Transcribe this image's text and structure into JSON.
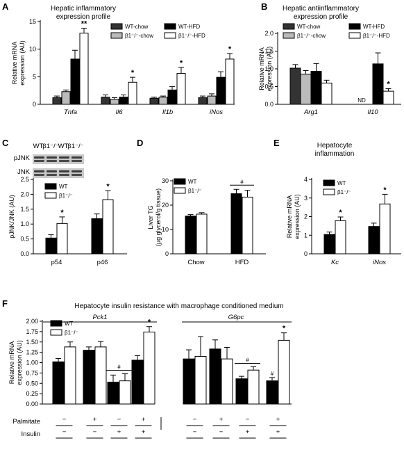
{
  "colors": {
    "wt_chow": "#333333",
    "b1_chow": "#bbbbbb",
    "wt_hfd": "#000000",
    "b1_hfd": "#ffffff",
    "wt": "#000000",
    "b1": "#ffffff",
    "stroke": "#000000"
  },
  "chart_data": [
    {
      "id": "A",
      "panel_label": "A",
      "type": "bar",
      "title": [
        "Hepatic inflammatory",
        "expression profile"
      ],
      "ylabel": [
        "Relative mRNA",
        "expression (AU)"
      ],
      "ylim": [
        0,
        15
      ],
      "yticks": [
        0,
        5,
        10,
        15
      ],
      "categories": [
        "Tnfa",
        "Il6",
        "Il1b",
        "iNos"
      ],
      "category_italic": true,
      "series": [
        {
          "name": "WT-chow",
          "color": "#333333",
          "values": [
            1.2,
            1.3,
            1.1,
            1.2
          ],
          "errors": [
            0.3,
            0.4,
            0.2,
            0.3
          ],
          "marks": [
            "",
            "",
            "",
            ""
          ]
        },
        {
          "name": "β1⁻/⁻-chow",
          "color": "#bbbbbb",
          "values": [
            2.3,
            0.9,
            1.3,
            1.5
          ],
          "errors": [
            0.3,
            0.3,
            0.2,
            0.4
          ],
          "marks": [
            "",
            "",
            "",
            ""
          ]
        },
        {
          "name": "WT-HFD",
          "color": "#000000",
          "values": [
            8.2,
            1.3,
            2.6,
            4.9
          ],
          "errors": [
            1.6,
            0.4,
            0.6,
            1.0
          ],
          "marks": [
            "",
            "",
            "",
            ""
          ]
        },
        {
          "name": "β1⁻/⁻-HFD",
          "color": "#ffffff",
          "values": [
            12.9,
            4.0,
            5.6,
            8.2
          ],
          "errors": [
            0.9,
            0.9,
            1.1,
            1.0
          ],
          "marks": [
            "**",
            "*",
            "*",
            "*"
          ]
        }
      ],
      "legend_layout": "2x2",
      "grid": false
    },
    {
      "id": "B",
      "panel_label": "B",
      "type": "bar",
      "title": [
        "Hepatic antiinflammatory",
        "expression profile"
      ],
      "ylabel": [
        "Relative mRNA",
        "expression (AU)"
      ],
      "ylim": [
        0,
        2.0
      ],
      "yticks": [
        0.0,
        0.5,
        1.0,
        1.5,
        2.0
      ],
      "categories": [
        "Arg1",
        "Il10"
      ],
      "category_italic": true,
      "series": [
        {
          "name": "WT-chow",
          "color": "#333333",
          "values": [
            1.02,
            null
          ],
          "errors": [
            0.1,
            null
          ],
          "marks": [
            "",
            ""
          ]
        },
        {
          "name": "β1⁻/⁻-chow",
          "color": "#bbbbbb",
          "values": [
            0.85,
            null
          ],
          "errors": [
            0.1,
            null
          ],
          "marks": [
            "",
            ""
          ]
        },
        {
          "name": "WT-HFD",
          "color": "#000000",
          "values": [
            0.93,
            1.14
          ],
          "errors": [
            0.22,
            0.31
          ],
          "marks": [
            "",
            ""
          ]
        },
        {
          "name": "β1⁻/⁻-HFD",
          "color": "#ffffff",
          "values": [
            0.6,
            0.37
          ],
          "errors": [
            0.08,
            0.07
          ],
          "marks": [
            "",
            "*"
          ]
        }
      ],
      "annotations": [
        {
          "text": "ND",
          "category": 1
        }
      ],
      "legend_layout": "2x2",
      "grid": false
    },
    {
      "id": "C",
      "panel_label": "C",
      "type": "bar",
      "title": [],
      "blot": {
        "header": [
          "WT",
          "β1⁻/⁻",
          "WT",
          "β1⁻/⁻"
        ],
        "rows": [
          "pJNK",
          "JNK"
        ]
      },
      "ylabel": [
        "pJNK/JNK (AU)"
      ],
      "ylim": [
        0,
        2.5
      ],
      "yticks": [
        0.0,
        0.5,
        1.0,
        1.5,
        2.0,
        2.5
      ],
      "categories": [
        "p54",
        "p46"
      ],
      "category_italic": false,
      "series": [
        {
          "name": "WT",
          "color": "#000000",
          "values": [
            0.53,
            1.18
          ],
          "errors": [
            0.11,
            0.16
          ],
          "marks": [
            "",
            ""
          ]
        },
        {
          "name": "β1⁻/⁻",
          "color": "#ffffff",
          "values": [
            1.02,
            1.82
          ],
          "errors": [
            0.22,
            0.3
          ],
          "marks": [
            "*",
            "*"
          ]
        }
      ],
      "legend_layout": "1col",
      "grid": false
    },
    {
      "id": "D",
      "panel_label": "D",
      "type": "bar",
      "title": [],
      "ylabel": [
        "Liver TG",
        "(μg glycerol/g tissue)"
      ],
      "ylim": [
        0,
        30
      ],
      "yticks": [
        0,
        10,
        20,
        30
      ],
      "categories": [
        "Chow",
        "HFD"
      ],
      "category_italic": false,
      "series": [
        {
          "name": "WT",
          "color": "#000000",
          "values": [
            15.5,
            24.7
          ],
          "errors": [
            0.6,
            1.8
          ],
          "marks": [
            "",
            ""
          ]
        },
        {
          "name": "β1⁻/⁻",
          "color": "#ffffff",
          "values": [
            16.3,
            23.3
          ],
          "errors": [
            0.6,
            2.8
          ],
          "marks": [
            "",
            ""
          ]
        }
      ],
      "group_marks": [
        {
          "category": 1,
          "text": "#"
        }
      ],
      "legend_layout": "1col",
      "grid": false
    },
    {
      "id": "E",
      "panel_label": "E",
      "type": "bar",
      "title": [
        "Hepatocyte",
        "inflammation"
      ],
      "ylabel": [
        "Relative mRNA",
        "expression (AU)"
      ],
      "ylim": [
        0,
        4
      ],
      "yticks": [
        0,
        1,
        2,
        3,
        4
      ],
      "categories": [
        "Kc",
        "iNos"
      ],
      "category_italic": true,
      "series": [
        {
          "name": "WT",
          "color": "#000000",
          "values": [
            1.04,
            1.47
          ],
          "errors": [
            0.13,
            0.18
          ],
          "marks": [
            "",
            ""
          ]
        },
        {
          "name": "β1⁻/⁻",
          "color": "#ffffff",
          "values": [
            1.78,
            2.68
          ],
          "errors": [
            0.2,
            0.52
          ],
          "marks": [
            "*",
            "*"
          ]
        }
      ],
      "legend_layout": "1col",
      "grid": false
    },
    {
      "id": "F",
      "panel_label": "F",
      "type": "bar",
      "title": [
        "Hepatocyte insulin resistance with macrophage conditioned medium"
      ],
      "ylabel": [
        "Relative mRNA",
        "expression (AU)"
      ],
      "ylim": [
        0,
        2.0
      ],
      "yticks": [
        0.0,
        0.25,
        0.5,
        0.75,
        1.0,
        1.25,
        1.5,
        1.75,
        2.0
      ],
      "gene_labels": [
        "Pck1",
        "G6pc"
      ],
      "conditions": [
        {
          "palmitate": "−",
          "insulin": "−"
        },
        {
          "palmitate": "+",
          "insulin": "−"
        },
        {
          "palmitate": "−",
          "insulin": "+"
        },
        {
          "palmitate": "+",
          "insulin": "+"
        }
      ],
      "row_labels": [
        "Palmitate",
        "Insulin"
      ],
      "series": [
        {
          "name": "WT",
          "color": "#000000",
          "values": [
            1.02,
            1.3,
            0.53,
            1.06,
            1.09,
            1.33,
            0.61,
            0.56
          ],
          "errors": [
            0.08,
            0.08,
            0.17,
            0.11,
            0.22,
            0.22,
            0.06,
            0.08
          ],
          "marks": [
            "",
            "",
            "",
            "",
            "",
            "",
            "",
            "#"
          ]
        },
        {
          "name": "β1⁻/⁻",
          "color": "#ffffff",
          "values": [
            1.38,
            1.38,
            0.56,
            1.74,
            1.15,
            1.09,
            0.82,
            1.54
          ],
          "errors": [
            0.12,
            0.13,
            0.17,
            0.13,
            0.48,
            0.28,
            0.08,
            0.18
          ],
          "marks": [
            "",
            "",
            "",
            "*",
            "",
            "",
            "",
            "*"
          ]
        }
      ],
      "group_marks": [
        {
          "group": 2,
          "text": "#"
        },
        {
          "group": 6,
          "text": "#"
        }
      ],
      "legend_layout": "1col",
      "grid": false
    }
  ]
}
